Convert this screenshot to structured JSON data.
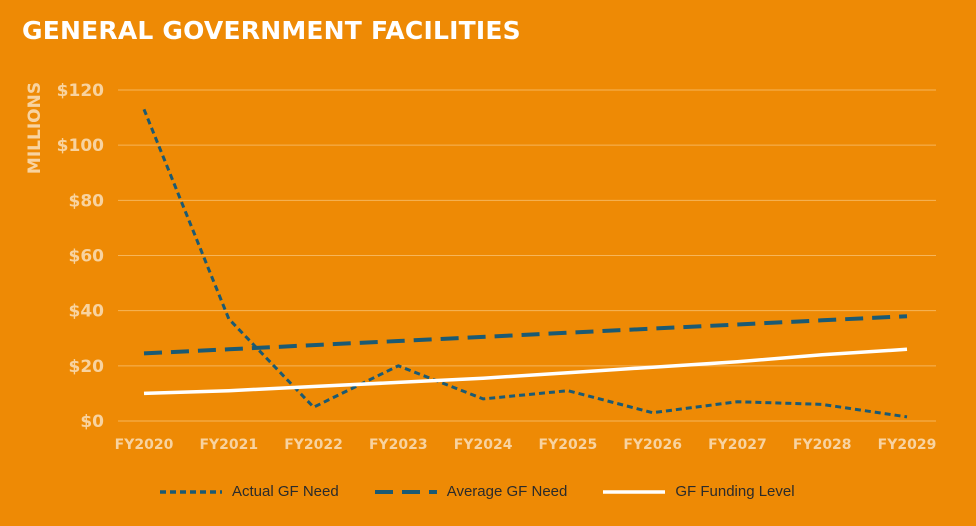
{
  "chart_data": {
    "type": "line",
    "title": "GENERAL GOVERNMENT FACILITIES",
    "ylabel": "MILLIONS",
    "xlabel": "",
    "categories": [
      "FY2020",
      "FY2021",
      "FY2022",
      "FY2023",
      "FY2024",
      "FY2025",
      "FY2026",
      "FY2027",
      "FY2028",
      "FY2029"
    ],
    "y_ticks": [
      "$0",
      "$20",
      "$40",
      "$60",
      "$80",
      "$100",
      "$120"
    ],
    "ylim": [
      0,
      120
    ],
    "grid": true,
    "legend_position": "bottom",
    "series": [
      {
        "name": "Actual GF Need",
        "style": "short-dash",
        "color": "#1B5A73",
        "values": [
          113,
          37,
          5,
          20,
          8,
          11,
          3,
          7,
          6,
          1.5
        ]
      },
      {
        "name": "Average GF Need",
        "style": "long-dash",
        "color": "#1B5A73",
        "values": [
          24.5,
          26,
          27.5,
          29,
          30.5,
          32,
          33.5,
          35,
          36.5,
          38
        ]
      },
      {
        "name": "GF Funding Level",
        "style": "solid",
        "color": "#FFFFFF",
        "values": [
          10,
          11,
          12.5,
          14,
          15.5,
          17.5,
          19.5,
          21.5,
          24,
          26
        ]
      }
    ]
  }
}
